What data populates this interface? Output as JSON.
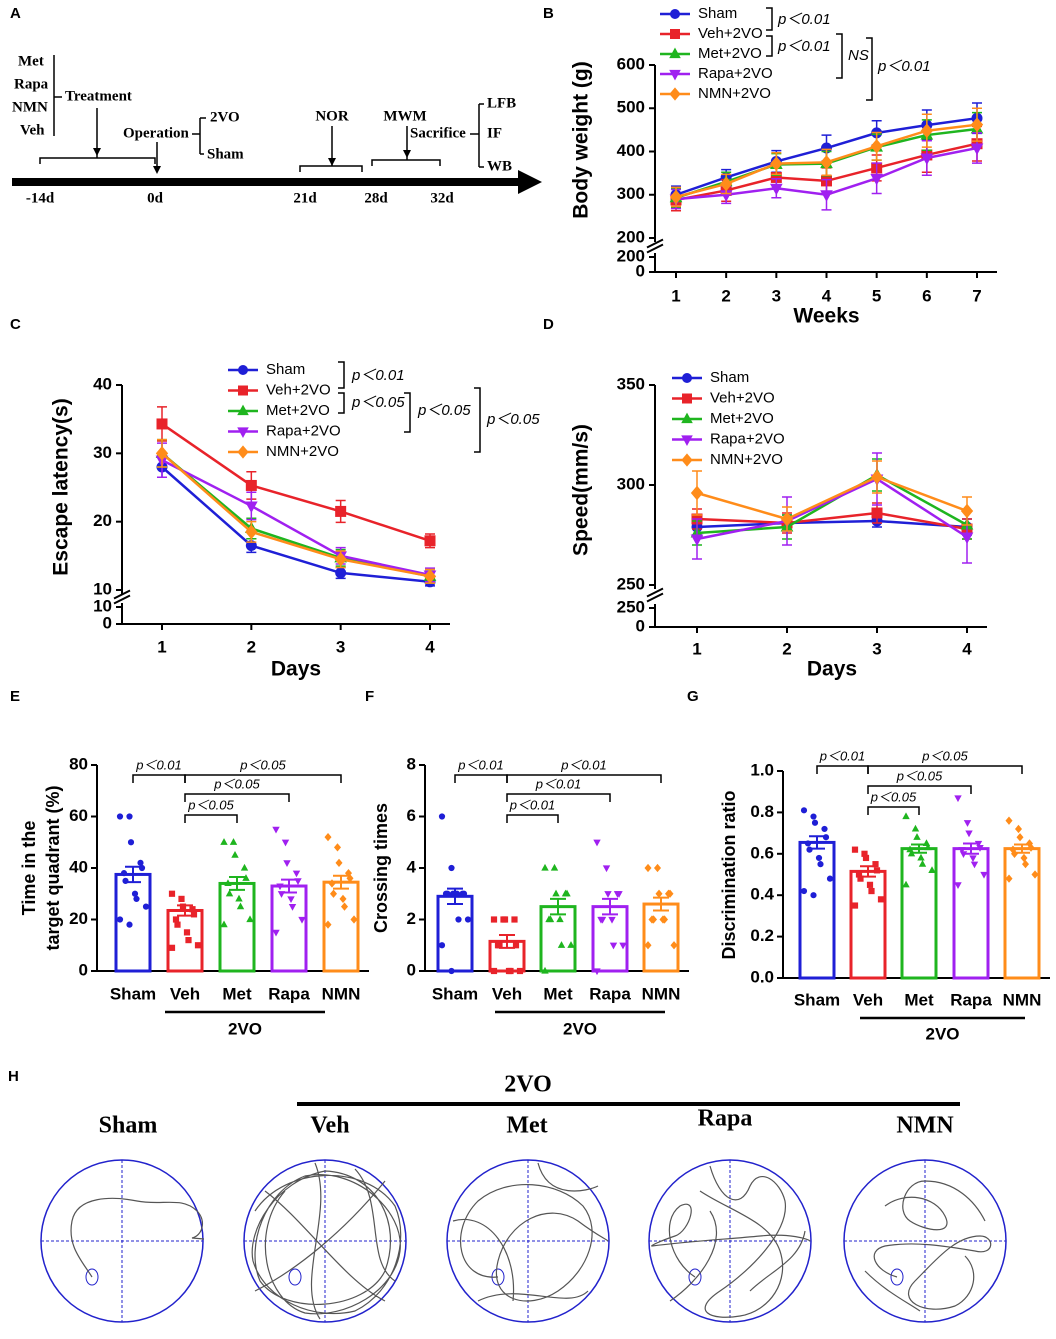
{
  "panel_labels": [
    "A",
    "B",
    "C",
    "D",
    "E",
    "F",
    "G",
    "H"
  ],
  "timeline": {
    "treatments": [
      "Met",
      "Rapa",
      "NMN",
      "Veh"
    ],
    "treatment_label": "Treatment",
    "operation_label": "Operation",
    "operations": [
      "2VO",
      "Sham"
    ],
    "tests": [
      "NOR",
      "MWM",
      "Sacrifice"
    ],
    "assays": [
      "LFB",
      "IF",
      "WB"
    ],
    "days": [
      "-14d",
      "0d",
      "21d",
      "28d",
      "32d"
    ]
  },
  "chart_data": [
    {
      "type": "line",
      "xlabel": "Weeks",
      "ylabel": "Body weight (g)",
      "x": [
        1,
        2,
        3,
        4,
        5,
        6,
        7
      ],
      "ylim": [
        200,
        600
      ],
      "yticks": [
        200,
        300,
        400,
        500,
        600
      ],
      "lower_yticks": [
        0,
        200
      ],
      "series": [
        {
          "name": "Sham",
          "color": "#1f1fd6",
          "marker": "circle",
          "values": [
            300,
            340,
            377,
            408,
            443,
            461,
            477
          ],
          "errors": [
            20,
            18,
            25,
            30,
            28,
            35,
            35
          ]
        },
        {
          "name": "Veh+2VO",
          "color": "#e8232a",
          "marker": "square",
          "values": [
            288,
            310,
            340,
            332,
            362,
            392,
            418
          ],
          "errors": [
            25,
            25,
            25,
            30,
            30,
            40,
            40
          ]
        },
        {
          "name": "Met+2VO",
          "color": "#1fb51f",
          "marker": "triangle",
          "values": [
            293,
            330,
            370,
            372,
            410,
            438,
            452
          ],
          "errors": [
            22,
            22,
            25,
            28,
            30,
            35,
            38
          ]
        },
        {
          "name": "Rapa+2VO",
          "color": "#a020f0",
          "marker": "down",
          "values": [
            290,
            300,
            315,
            300,
            338,
            385,
            408
          ],
          "errors": [
            22,
            20,
            22,
            35,
            35,
            40,
            35
          ]
        },
        {
          "name": "NMN+2VO",
          "color": "#ff8c1a",
          "marker": "diamond",
          "values": [
            295,
            325,
            372,
            375,
            412,
            448,
            462
          ],
          "errors": [
            22,
            22,
            25,
            30,
            32,
            38,
            38
          ]
        }
      ],
      "annotations": [
        "p＜0.01",
        "p＜0.01",
        "NS",
        "p＜0.01"
      ]
    },
    {
      "type": "line",
      "xlabel": "Days",
      "ylabel": "Escape latency(s)",
      "x": [
        1,
        2,
        3,
        4
      ],
      "ylim": [
        10,
        40
      ],
      "yticks": [
        10,
        20,
        30,
        40
      ],
      "lower_yticks": [
        0,
        10
      ],
      "series": [
        {
          "name": "Sham",
          "color": "#1f1fd6",
          "marker": "circle",
          "values": [
            28,
            16.5,
            12.5,
            11.2
          ],
          "errors": [
            1.5,
            1,
            0.8,
            0.6
          ]
        },
        {
          "name": "Veh+2VO",
          "color": "#e8232a",
          "marker": "square",
          "values": [
            34.3,
            25.3,
            21.5,
            17.2
          ],
          "errors": [
            2.5,
            2,
            1.6,
            1
          ]
        },
        {
          "name": "Met+2VO",
          "color": "#1fb51f",
          "marker": "triangle",
          "values": [
            30,
            19,
            14.7,
            12
          ],
          "errors": [
            2,
            1.5,
            1.2,
            1
          ]
        },
        {
          "name": "Rapa+2VO",
          "color": "#a020f0",
          "marker": "down",
          "values": [
            29,
            22.3,
            15,
            12.2
          ],
          "errors": [
            2.5,
            2,
            1.2,
            1
          ]
        },
        {
          "name": "NMN+2VO",
          "color": "#ff8c1a",
          "marker": "diamond",
          "values": [
            30,
            18.5,
            14.5,
            12
          ],
          "errors": [
            2,
            1.5,
            1.2,
            1
          ]
        }
      ],
      "annotations": [
        "p＜0.01",
        "p＜0.05",
        "p＜0.05",
        "p＜0.05"
      ]
    },
    {
      "type": "line",
      "xlabel": "Days",
      "ylabel": "Speed(mm/s)",
      "x": [
        1,
        2,
        3,
        4
      ],
      "ylim": [
        250,
        350
      ],
      "yticks": [
        250,
        300,
        350
      ],
      "lower_yticks": [
        0,
        250
      ],
      "series": [
        {
          "name": "Sham",
          "color": "#1f1fd6",
          "marker": "circle",
          "values": [
            279,
            281,
            282,
            279
          ],
          "errors": [
            4,
            4,
            3,
            4
          ]
        },
        {
          "name": "Veh+2VO",
          "color": "#e8232a",
          "marker": "square",
          "values": [
            283,
            281,
            286,
            278
          ],
          "errors": [
            5,
            5,
            5,
            5
          ]
        },
        {
          "name": "Met+2VO",
          "color": "#1fb51f",
          "marker": "triangle",
          "values": [
            276,
            279,
            305,
            280
          ],
          "errors": [
            6,
            6,
            8,
            7
          ]
        },
        {
          "name": "Rapa+2VO",
          "color": "#a020f0",
          "marker": "down",
          "values": [
            273,
            282,
            303,
            274
          ],
          "errors": [
            10,
            12,
            13,
            13
          ]
        },
        {
          "name": "NMN+2VO",
          "color": "#ff8c1a",
          "marker": "diamond",
          "values": [
            296,
            283,
            304,
            287
          ],
          "errors": [
            11,
            6,
            8,
            7
          ]
        }
      ],
      "annotations": []
    },
    {
      "type": "bar",
      "ylabel": [
        "Time in the",
        "target quadrant (%)"
      ],
      "categories": [
        "Sham",
        "Veh",
        "Met",
        "Rapa",
        "NMN"
      ],
      "group_label": "2VO",
      "colors": [
        "#1f1fd6",
        "#e8232a",
        "#1fb51f",
        "#a020f0",
        "#ff8c1a"
      ],
      "markers": [
        "circle",
        "square",
        "triangle",
        "down",
        "diamond"
      ],
      "values": [
        37.5,
        23.5,
        34,
        33,
        34.5
      ],
      "errors": [
        3,
        2,
        2.5,
        2.5,
        2.5
      ],
      "points": [
        [
          60,
          60,
          50,
          42,
          40,
          38,
          35,
          30,
          28,
          25,
          20,
          18
        ],
        [
          30,
          28,
          25,
          24,
          22,
          20,
          18,
          15,
          12,
          10,
          9
        ],
        [
          50,
          50,
          45,
          40,
          36,
          34,
          30,
          28,
          25,
          20,
          18
        ],
        [
          55,
          50,
          42,
          38,
          35,
          33,
          30,
          28,
          25,
          20,
          15
        ],
        [
          52,
          48,
          42,
          38,
          36,
          34,
          30,
          28,
          25,
          20,
          18
        ]
      ],
      "ylim": [
        0,
        80
      ],
      "yticks": [
        0,
        20,
        40,
        60,
        80
      ],
      "annotations": [
        "p＜0.01",
        "p＜0.05",
        "p＜0.05",
        "p＜0.05"
      ]
    },
    {
      "type": "bar",
      "ylabel": [
        "Crossing times"
      ],
      "categories": [
        "Sham",
        "Veh",
        "Met",
        "Rapa",
        "NMN"
      ],
      "group_label": "2VO",
      "colors": [
        "#1f1fd6",
        "#e8232a",
        "#1fb51f",
        "#a020f0",
        "#ff8c1a"
      ],
      "markers": [
        "circle",
        "square",
        "triangle",
        "down",
        "diamond"
      ],
      "values": [
        2.9,
        1.15,
        2.5,
        2.5,
        2.6
      ],
      "errors": [
        0.3,
        0.25,
        0.3,
        0.3,
        0.25
      ],
      "points": [
        [
          6,
          4,
          3,
          3,
          3,
          3,
          3,
          3,
          2,
          2,
          1,
          0
        ],
        [
          2,
          2,
          2,
          2,
          1,
          1,
          1,
          0,
          0,
          0,
          0
        ],
        [
          4,
          4,
          3,
          3,
          3,
          2,
          2,
          2,
          1,
          1,
          0
        ],
        [
          5,
          4,
          3,
          3,
          3,
          2,
          2,
          2,
          1,
          1,
          0
        ],
        [
          4,
          4,
          3,
          3,
          3,
          2,
          2,
          2,
          2,
          1,
          1
        ]
      ],
      "ylim": [
        0,
        8
      ],
      "yticks": [
        0,
        2,
        4,
        6,
        8
      ],
      "annotations": [
        "p＜0.01",
        "p＜0.01",
        "p＜0.01",
        "p＜0.01"
      ]
    },
    {
      "type": "bar",
      "ylabel": [
        "Discrimination ratio"
      ],
      "categories": [
        "Sham",
        "Veh",
        "Met",
        "Rapa",
        "NMN"
      ],
      "group_label": "2VO",
      "colors": [
        "#1f1fd6",
        "#e8232a",
        "#1fb51f",
        "#a020f0",
        "#ff8c1a"
      ],
      "markers": [
        "circle",
        "square",
        "triangle",
        "down",
        "diamond"
      ],
      "values": [
        0.655,
        0.515,
        0.625,
        0.625,
        0.625
      ],
      "errors": [
        0.03,
        0.025,
        0.02,
        0.025,
        0.02
      ],
      "points": [
        [
          0.81,
          0.78,
          0.75,
          0.72,
          0.68,
          0.65,
          0.62,
          0.58,
          0.55,
          0.48,
          0.42,
          0.4
        ],
        [
          0.62,
          0.6,
          0.58,
          0.55,
          0.52,
          0.5,
          0.48,
          0.45,
          0.42,
          0.38,
          0.35
        ],
        [
          0.78,
          0.72,
          0.68,
          0.65,
          0.63,
          0.62,
          0.6,
          0.58,
          0.55,
          0.52,
          0.45
        ],
        [
          0.87,
          0.75,
          0.7,
          0.65,
          0.63,
          0.62,
          0.6,
          0.58,
          0.55,
          0.5,
          0.45
        ],
        [
          0.76,
          0.72,
          0.68,
          0.65,
          0.63,
          0.62,
          0.6,
          0.58,
          0.55,
          0.5,
          0.48
        ]
      ],
      "ylim": [
        0,
        1
      ],
      "yticks": [
        {
          "value": 0,
          "label": "0.0"
        },
        0.2,
        0.4,
        0.6,
        0.8,
        {
          "value": 1,
          "label": "1.0"
        }
      ],
      "annotations": [
        "p＜0.01",
        "p＜0.05",
        "p＜0.05",
        "p＜0.05"
      ]
    }
  ],
  "trajectories": {
    "group_label": "2VO",
    "groups": [
      "Sham",
      "Veh",
      "Met",
      "Rapa",
      "NMN"
    ]
  }
}
